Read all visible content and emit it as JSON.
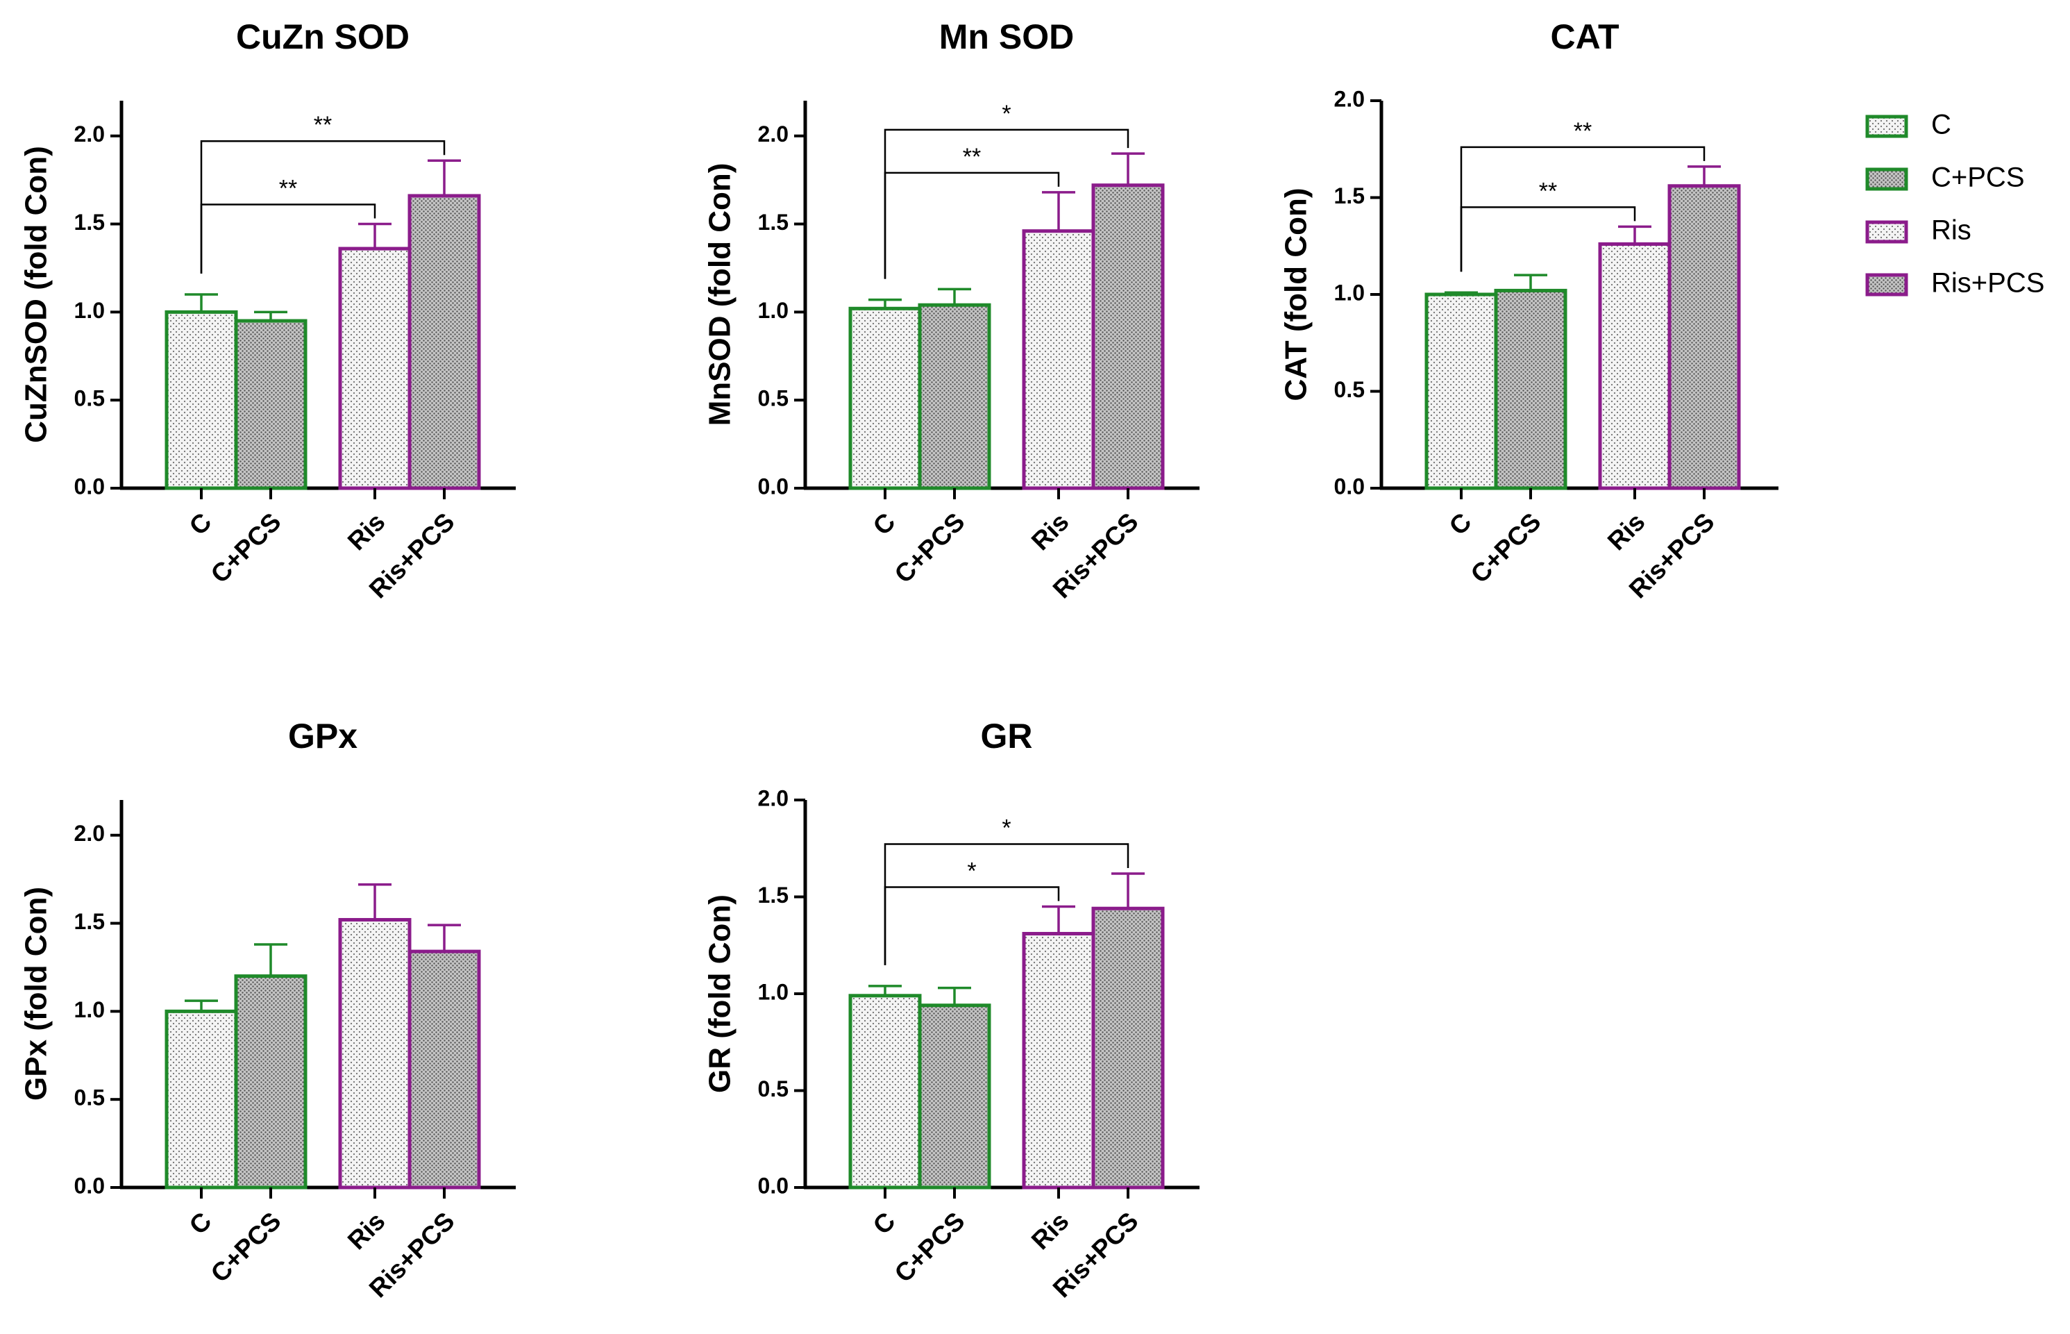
{
  "colors": {
    "control": "#1f8a2a",
    "treated": "#8b1c8b",
    "axis": "#000000",
    "plainFill": "#f4f4f4",
    "dotFill": "#c4c4c4"
  },
  "legend": [
    {
      "label": "C",
      "group": "control",
      "fill": "plain"
    },
    {
      "label": "C+PCS",
      "group": "control",
      "fill": "dots"
    },
    {
      "label": "Ris",
      "group": "treated",
      "fill": "plain"
    },
    {
      "label": "Ris+PCS",
      "group": "treated",
      "fill": "dots"
    }
  ],
  "chart_data": [
    {
      "id": "cuznsod",
      "type": "bar",
      "title": "CuZn SOD",
      "ylabel": "CuZnSOD (fold Con)",
      "categories": [
        "C",
        "C+PCS",
        "Ris",
        "Ris+PCS"
      ],
      "values": [
        1.0,
        0.95,
        1.36,
        1.66
      ],
      "errors": [
        0.1,
        0.05,
        0.14,
        0.2
      ],
      "ylim": [
        0,
        2.2
      ],
      "yticks": [
        "0.0",
        "0.5",
        "1.0",
        "1.5",
        "2.0"
      ],
      "significance": [
        {
          "from": 0,
          "to": 2,
          "label": "**"
        },
        {
          "from": 0,
          "to": 3,
          "label": "**"
        }
      ]
    },
    {
      "id": "mnsod",
      "type": "bar",
      "title": "Mn SOD",
      "ylabel": "MnSOD (fold Con)",
      "categories": [
        "C",
        "C+PCS",
        "Ris",
        "Ris+PCS"
      ],
      "values": [
        1.02,
        1.04,
        1.46,
        1.72
      ],
      "errors": [
        0.05,
        0.09,
        0.22,
        0.18
      ],
      "ylim": [
        0,
        2.2
      ],
      "yticks": [
        "0.0",
        "0.5",
        "1.0",
        "1.5",
        "2.0"
      ],
      "significance": [
        {
          "from": 0,
          "to": 2,
          "label": "**"
        },
        {
          "from": 0,
          "to": 3,
          "label": "*"
        }
      ]
    },
    {
      "id": "cat",
      "type": "bar",
      "title": "CAT",
      "ylabel": "CAT (fold Con)",
      "categories": [
        "C",
        "C+PCS",
        "Ris",
        "Ris+PCS"
      ],
      "values": [
        1.0,
        1.02,
        1.26,
        1.56
      ],
      "errors": [
        0.01,
        0.08,
        0.09,
        0.1
      ],
      "ylim": [
        0,
        2.0
      ],
      "yticks": [
        "0.0",
        "0.5",
        "1.0",
        "1.5",
        "2.0"
      ],
      "significance": [
        {
          "from": 0,
          "to": 2,
          "label": "**"
        },
        {
          "from": 0,
          "to": 3,
          "label": "**"
        }
      ]
    },
    {
      "id": "gpx",
      "type": "bar",
      "title": "GPx",
      "ylabel": "GPx (fold Con)",
      "categories": [
        "C",
        "C+PCS",
        "Ris",
        "Ris+PCS"
      ],
      "values": [
        1.0,
        1.2,
        1.52,
        1.34
      ],
      "errors": [
        0.06,
        0.18,
        0.2,
        0.15
      ],
      "ylim": [
        0,
        2.2
      ],
      "yticks": [
        "0.0",
        "0.5",
        "1.0",
        "1.5",
        "2.0"
      ],
      "significance": []
    },
    {
      "id": "gr",
      "type": "bar",
      "title": "GR",
      "ylabel": "GR (fold Con)",
      "categories": [
        "C",
        "C+PCS",
        "Ris",
        "Ris+PCS"
      ],
      "values": [
        0.99,
        0.94,
        1.31,
        1.44
      ],
      "errors": [
        0.05,
        0.09,
        0.14,
        0.18
      ],
      "ylim": [
        0,
        2.0
      ],
      "yticks": [
        "0.0",
        "0.5",
        "1.0",
        "1.5",
        "2.0"
      ],
      "significance": [
        {
          "from": 0,
          "to": 2,
          "label": "*"
        },
        {
          "from": 0,
          "to": 3,
          "label": "*"
        }
      ]
    }
  ]
}
